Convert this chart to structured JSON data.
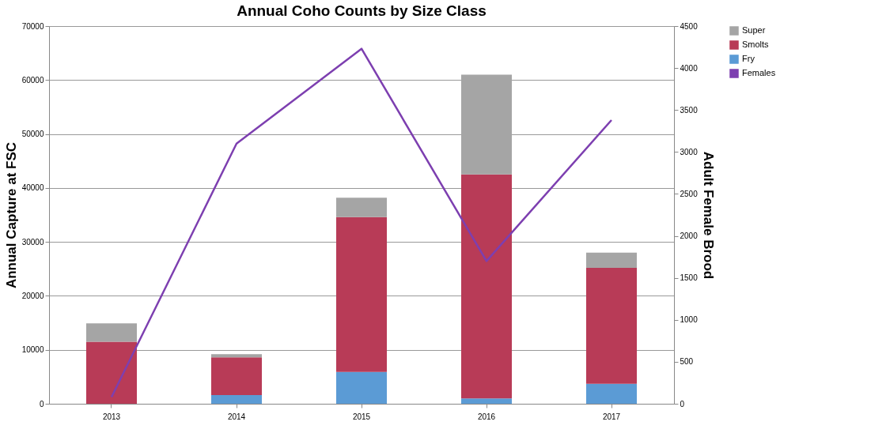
{
  "chart_data": {
    "type": "bar",
    "title": "Annual Coho Counts by Size Class",
    "ylabel": "Annual Capture at FSC",
    "y2label": "Adult Female Brood",
    "categories": [
      "2013",
      "2014",
      "2015",
      "2016",
      "2017"
    ],
    "stacked": true,
    "series": [
      {
        "name": "Fry",
        "color": "#5b9bd5",
        "values": [
          0,
          1600,
          5900,
          1000,
          3700
        ]
      },
      {
        "name": "Smolts",
        "color": "#b83b57",
        "values": [
          11500,
          7000,
          28700,
          41500,
          21500
        ]
      },
      {
        "name": "Super",
        "color": "#a5a5a5",
        "values": [
          3400,
          600,
          3600,
          18500,
          2800
        ]
      },
      {
        "name": "Females",
        "type": "line",
        "axis": "y2",
        "color": "#7d3fb0",
        "values": [
          80,
          3100,
          4230,
          1700,
          3380
        ]
      }
    ],
    "ylim": [
      0,
      70000
    ],
    "yticks": [
      0,
      10000,
      20000,
      30000,
      40000,
      50000,
      60000,
      70000
    ],
    "y2lim": [
      0,
      4500
    ],
    "y2ticks": [
      0,
      500,
      1000,
      1500,
      2000,
      2500,
      3000,
      3500,
      4000,
      4500
    ],
    "grid": "y",
    "legend": "right"
  }
}
